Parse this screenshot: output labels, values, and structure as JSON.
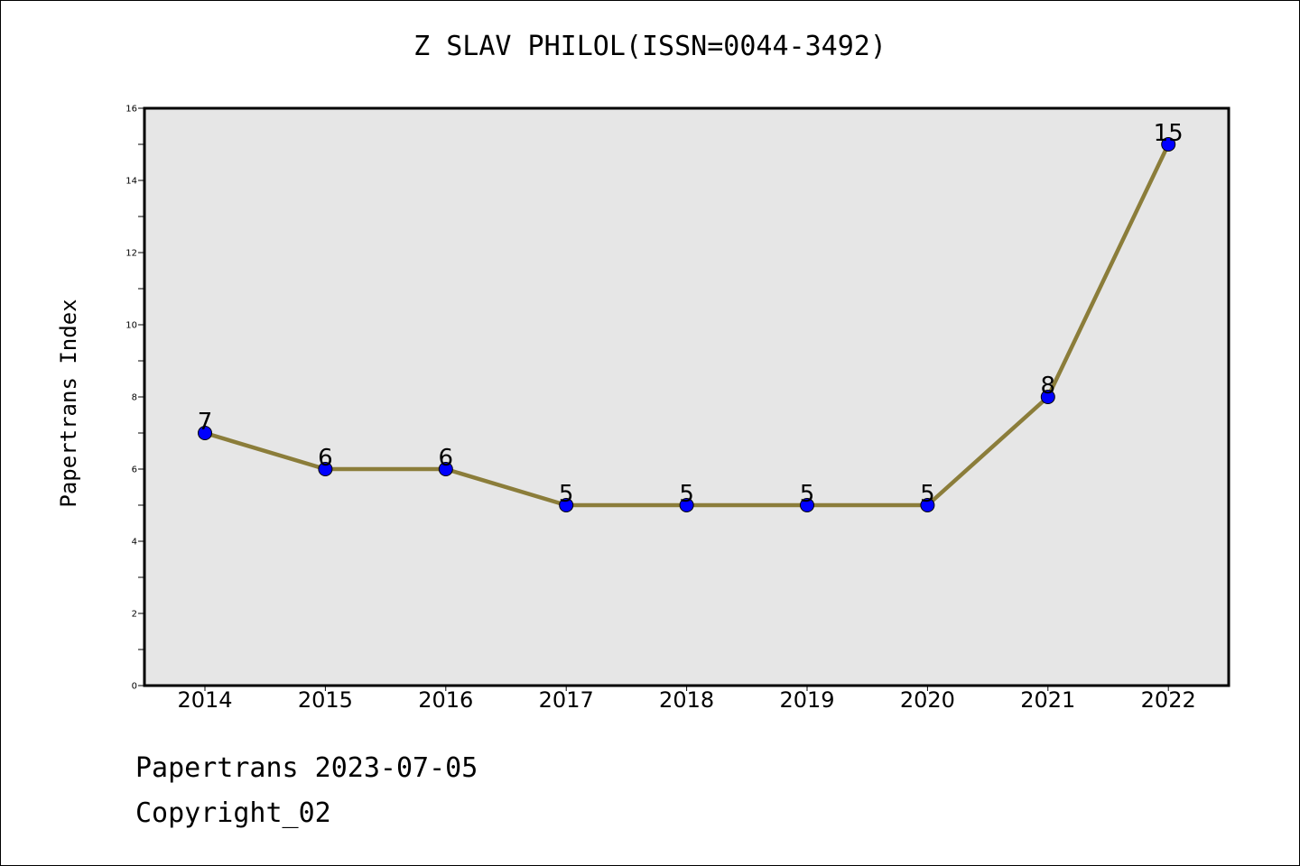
{
  "chart_data": {
    "type": "line",
    "title": "Z SLAV PHILOL(ISSN=0044-3492)",
    "ylabel": "Papertrans Index",
    "xlabel": "",
    "categories": [
      "2014",
      "2015",
      "2016",
      "2017",
      "2018",
      "2019",
      "2020",
      "2021",
      "2022"
    ],
    "values": [
      7,
      6,
      6,
      5,
      5,
      5,
      5,
      8,
      15
    ],
    "ylim": [
      0,
      16
    ],
    "yticks": [
      0,
      2,
      4,
      6,
      8,
      10,
      12,
      14,
      16
    ],
    "grid": false,
    "colors": {
      "line": "#8b7d3a",
      "marker": "#0000ff",
      "plot_background": "#e6e6e6"
    }
  },
  "footer": {
    "line1": "Papertrans 2023-07-05",
    "line2": "Copyright_02"
  }
}
